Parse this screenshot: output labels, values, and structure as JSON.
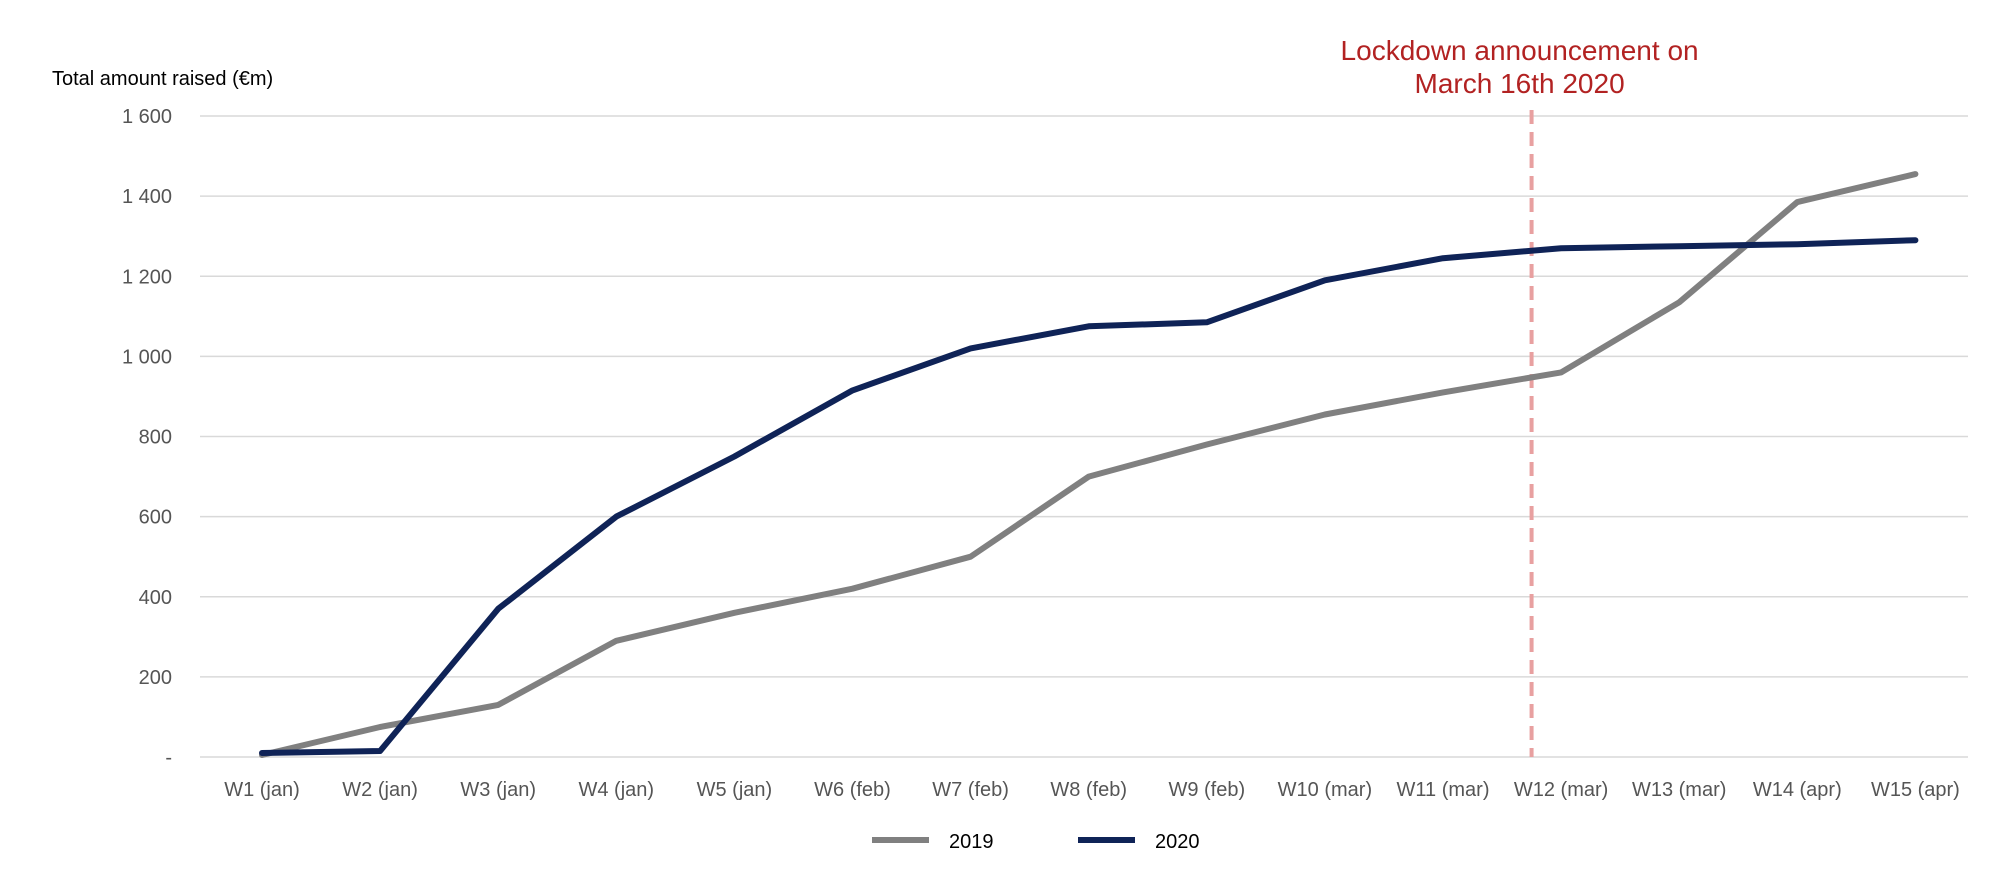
{
  "chart_data": {
    "type": "line",
    "ylabel": "Total amount raised (€m)",
    "xlabel": "",
    "title": "",
    "categories": [
      "W1 (jan)",
      "W2 (jan)",
      "W3 (jan)",
      "W4 (jan)",
      "W5 (jan)",
      "W6 (feb)",
      "W7 (feb)",
      "W8 (feb)",
      "W9 (feb)",
      "W10 (mar)",
      "W11 (mar)",
      "W12 (mar)",
      "W13 (mar)",
      "W14 (apr)",
      "W15 (apr)"
    ],
    "ylim": [
      0,
      1600
    ],
    "yticks": [
      0,
      200,
      400,
      600,
      800,
      1000,
      1200,
      1400,
      1600
    ],
    "ytick_labels": [
      "-",
      "200",
      "400",
      "600",
      "800",
      "1 000",
      "1 200",
      "1 400",
      "1 600"
    ],
    "series": [
      {
        "name": "2019",
        "color": "#808080",
        "values": [
          5,
          75,
          130,
          290,
          360,
          420,
          500,
          700,
          780,
          855,
          910,
          960,
          1135,
          1385,
          1455
        ]
      },
      {
        "name": "2020",
        "color": "#0f2357",
        "values": [
          10,
          15,
          370,
          600,
          750,
          915,
          1020,
          1075,
          1085,
          1190,
          1245,
          1270,
          1275,
          1280,
          1290
        ]
      }
    ],
    "annotation": {
      "text_line1": "Lockdown announcement on",
      "text_line2": "March 16th 2020",
      "position_category_index": 10.75,
      "color": "#b22222",
      "line_color": "#e8a0a0"
    },
    "grid": true,
    "legend": "bottom-center"
  }
}
